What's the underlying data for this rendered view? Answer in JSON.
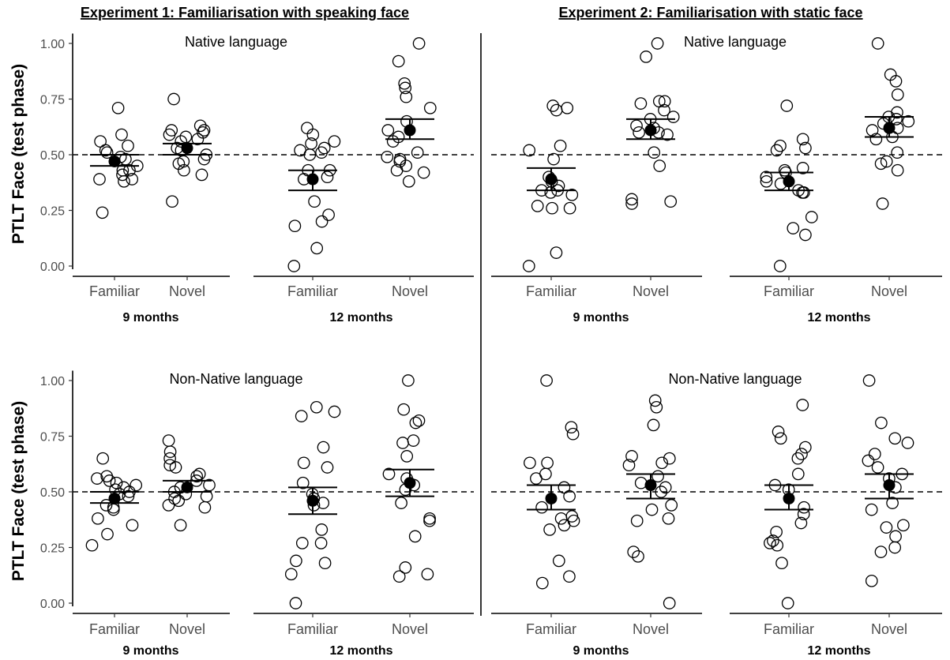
{
  "experiments": [
    {
      "title": "Experiment 1: Familiarisation with speaking face"
    },
    {
      "title": "Experiment 2: Familiarisation with static face"
    }
  ],
  "chart_data": {
    "type": "scatter",
    "ylabel": "PTLT Face (test phase)",
    "ylim": [
      0,
      1
    ],
    "yticks": [
      "0.00",
      "0.25",
      "0.50",
      "0.75",
      "1.00"
    ],
    "reference_line": 0.5,
    "categories": [
      "Familiar",
      "Novel"
    ],
    "panels": [
      {
        "experiment": 0,
        "row": 0,
        "title": "Native language",
        "groups": [
          {
            "age": "9 months",
            "familiar": {
              "mean": 0.47,
              "se_low": 0.45,
              "se_high": 0.5,
              "points": [
                0.59,
                0.52,
                0.49,
                0.45,
                0.43,
                0.41,
                0.39,
                0.39,
                0.38,
                0.43,
                0.48,
                0.51,
                0.54,
                0.56,
                0.71,
                0.24
              ]
            },
            "novel": {
              "mean": 0.53,
              "se_low": 0.5,
              "se_high": 0.55,
              "points": [
                0.75,
                0.63,
                0.61,
                0.6,
                0.59,
                0.58,
                0.57,
                0.56,
                0.53,
                0.52,
                0.5,
                0.48,
                0.47,
                0.43,
                0.41,
                0.29,
                0.61,
                0.46
              ]
            }
          },
          {
            "age": "12 months",
            "familiar": {
              "mean": 0.39,
              "se_low": 0.34,
              "se_high": 0.43,
              "points": [
                0.62,
                0.59,
                0.56,
                0.55,
                0.53,
                0.52,
                0.5,
                0.43,
                0.4,
                0.39,
                0.29,
                0.23,
                0.2,
                0.18,
                0.08,
                0.0,
                0.51,
                0.43
              ]
            },
            "novel": {
              "mean": 0.61,
              "se_low": 0.57,
              "se_high": 0.66,
              "points": [
                1.0,
                0.92,
                0.82,
                0.8,
                0.76,
                0.71,
                0.65,
                0.61,
                0.58,
                0.56,
                0.51,
                0.49,
                0.48,
                0.47,
                0.45,
                0.43,
                0.42,
                0.38
              ]
            }
          }
        ]
      },
      {
        "experiment": 1,
        "row": 0,
        "title": "Native language",
        "groups": [
          {
            "age": "9 months",
            "familiar": {
              "mean": 0.39,
              "se_low": 0.34,
              "se_high": 0.44,
              "points": [
                0.72,
                0.71,
                0.7,
                0.54,
                0.52,
                0.48,
                0.4,
                0.38,
                0.36,
                0.34,
                0.33,
                0.32,
                0.27,
                0.26,
                0.26,
                0.06,
                0.0,
                0.34
              ]
            },
            "novel": {
              "mean": 0.61,
              "se_low": 0.57,
              "se_high": 0.66,
              "points": [
                1.0,
                0.94,
                0.74,
                0.74,
                0.73,
                0.7,
                0.67,
                0.66,
                0.63,
                0.62,
                0.6,
                0.59,
                0.51,
                0.45,
                0.3,
                0.29,
                0.28,
                0.6
              ]
            }
          },
          {
            "age": "12 months",
            "familiar": {
              "mean": 0.38,
              "se_low": 0.34,
              "se_high": 0.42,
              "points": [
                0.72,
                0.57,
                0.54,
                0.53,
                0.52,
                0.44,
                0.43,
                0.42,
                0.38,
                0.37,
                0.34,
                0.33,
                0.33,
                0.22,
                0.17,
                0.14,
                0.0,
                0.4
              ]
            },
            "novel": {
              "mean": 0.62,
              "se_low": 0.58,
              "se_high": 0.67,
              "points": [
                1.0,
                0.86,
                0.83,
                0.77,
                0.69,
                0.67,
                0.66,
                0.65,
                0.62,
                0.61,
                0.58,
                0.57,
                0.51,
                0.47,
                0.46,
                0.43,
                0.28,
                0.64
              ]
            }
          }
        ]
      },
      {
        "experiment": 0,
        "row": 1,
        "title": "Non-Native language",
        "groups": [
          {
            "age": "9 months",
            "familiar": {
              "mean": 0.47,
              "se_low": 0.45,
              "se_high": 0.5,
              "points": [
                0.65,
                0.57,
                0.56,
                0.54,
                0.53,
                0.52,
                0.51,
                0.5,
                0.48,
                0.44,
                0.43,
                0.42,
                0.38,
                0.35,
                0.31,
                0.26,
                0.49,
                0.55
              ]
            },
            "novel": {
              "mean": 0.52,
              "se_low": 0.5,
              "se_high": 0.55,
              "points": [
                0.73,
                0.68,
                0.65,
                0.62,
                0.58,
                0.57,
                0.55,
                0.52,
                0.5,
                0.49,
                0.48,
                0.46,
                0.44,
                0.43,
                0.35,
                0.53,
                0.47,
                0.61
              ]
            }
          },
          {
            "age": "12 months",
            "familiar": {
              "mean": 0.46,
              "se_low": 0.4,
              "se_high": 0.52,
              "points": [
                0.88,
                0.86,
                0.84,
                0.7,
                0.63,
                0.61,
                0.54,
                0.47,
                0.45,
                0.44,
                0.33,
                0.27,
                0.27,
                0.19,
                0.18,
                0.13,
                0.0,
                0.49
              ]
            },
            "novel": {
              "mean": 0.54,
              "se_low": 0.48,
              "se_high": 0.6,
              "points": [
                1.0,
                0.87,
                0.82,
                0.81,
                0.73,
                0.72,
                0.66,
                0.56,
                0.53,
                0.45,
                0.38,
                0.37,
                0.3,
                0.16,
                0.13,
                0.12,
                0.58,
                0.51
              ]
            }
          }
        ]
      },
      {
        "experiment": 1,
        "row": 1,
        "title": "Non-Native language",
        "groups": [
          {
            "age": "9 months",
            "familiar": {
              "mean": 0.47,
              "se_low": 0.42,
              "se_high": 0.53,
              "points": [
                1.0,
                0.79,
                0.76,
                0.63,
                0.63,
                0.58,
                0.56,
                0.48,
                0.43,
                0.39,
                0.38,
                0.37,
                0.35,
                0.33,
                0.19,
                0.12,
                0.09,
                0.52
              ]
            },
            "novel": {
              "mean": 0.53,
              "se_low": 0.47,
              "se_high": 0.58,
              "points": [
                0.91,
                0.88,
                0.8,
                0.66,
                0.65,
                0.63,
                0.62,
                0.57,
                0.54,
                0.52,
                0.5,
                0.44,
                0.42,
                0.38,
                0.37,
                0.23,
                0.21,
                0.0
              ]
            }
          },
          {
            "age": "12 months",
            "familiar": {
              "mean": 0.47,
              "se_low": 0.42,
              "se_high": 0.53,
              "points": [
                0.89,
                0.77,
                0.74,
                0.7,
                0.67,
                0.65,
                0.58,
                0.53,
                0.43,
                0.4,
                0.36,
                0.32,
                0.28,
                0.27,
                0.26,
                0.18,
                0.0,
                0.51
              ]
            },
            "novel": {
              "mean": 0.53,
              "se_low": 0.47,
              "se_high": 0.58,
              "points": [
                1.0,
                0.81,
                0.74,
                0.72,
                0.67,
                0.64,
                0.61,
                0.58,
                0.56,
                0.52,
                0.45,
                0.42,
                0.35,
                0.34,
                0.3,
                0.25,
                0.23,
                0.1
              ]
            }
          }
        ]
      }
    ]
  }
}
